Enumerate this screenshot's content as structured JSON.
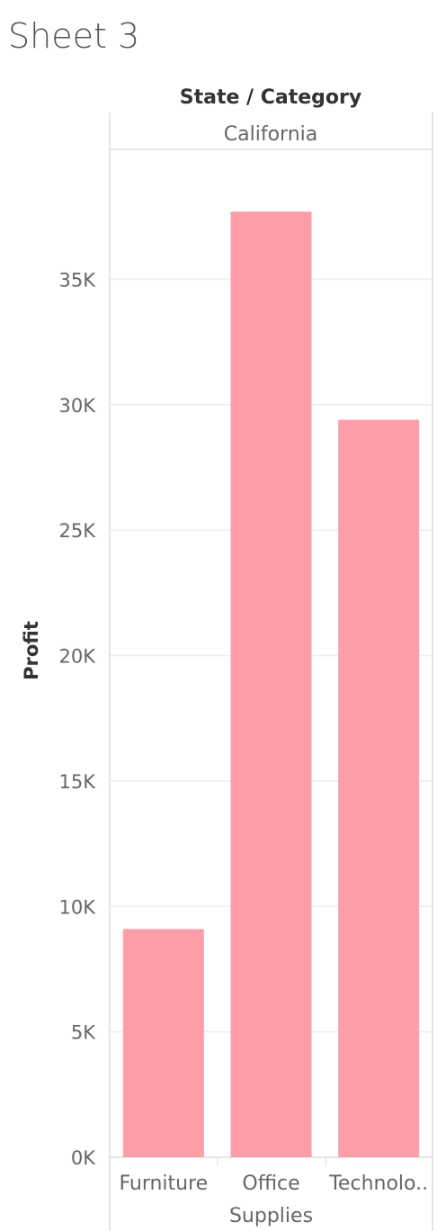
{
  "sheet": {
    "title": "Sheet 3"
  },
  "chart_data": {
    "type": "bar",
    "column_header": "State / Category",
    "panel_label": "California",
    "ylabel": "Profit",
    "categories": [
      "Furniture",
      "Office Supplies",
      "Technolo.."
    ],
    "category_lines": [
      [
        "Furniture"
      ],
      [
        "Office",
        "Supplies"
      ],
      [
        "Technolo.."
      ]
    ],
    "values": [
      9100,
      37700,
      29400
    ],
    "ylim": [
      0,
      39500
    ],
    "yticks": [
      0,
      5000,
      10000,
      15000,
      20000,
      25000,
      30000,
      35000
    ],
    "ytick_labels": [
      "0K",
      "5K",
      "10K",
      "15K",
      "20K",
      "25K",
      "30K",
      "35K"
    ],
    "bar_color": "#fd9da8",
    "grid": true
  }
}
